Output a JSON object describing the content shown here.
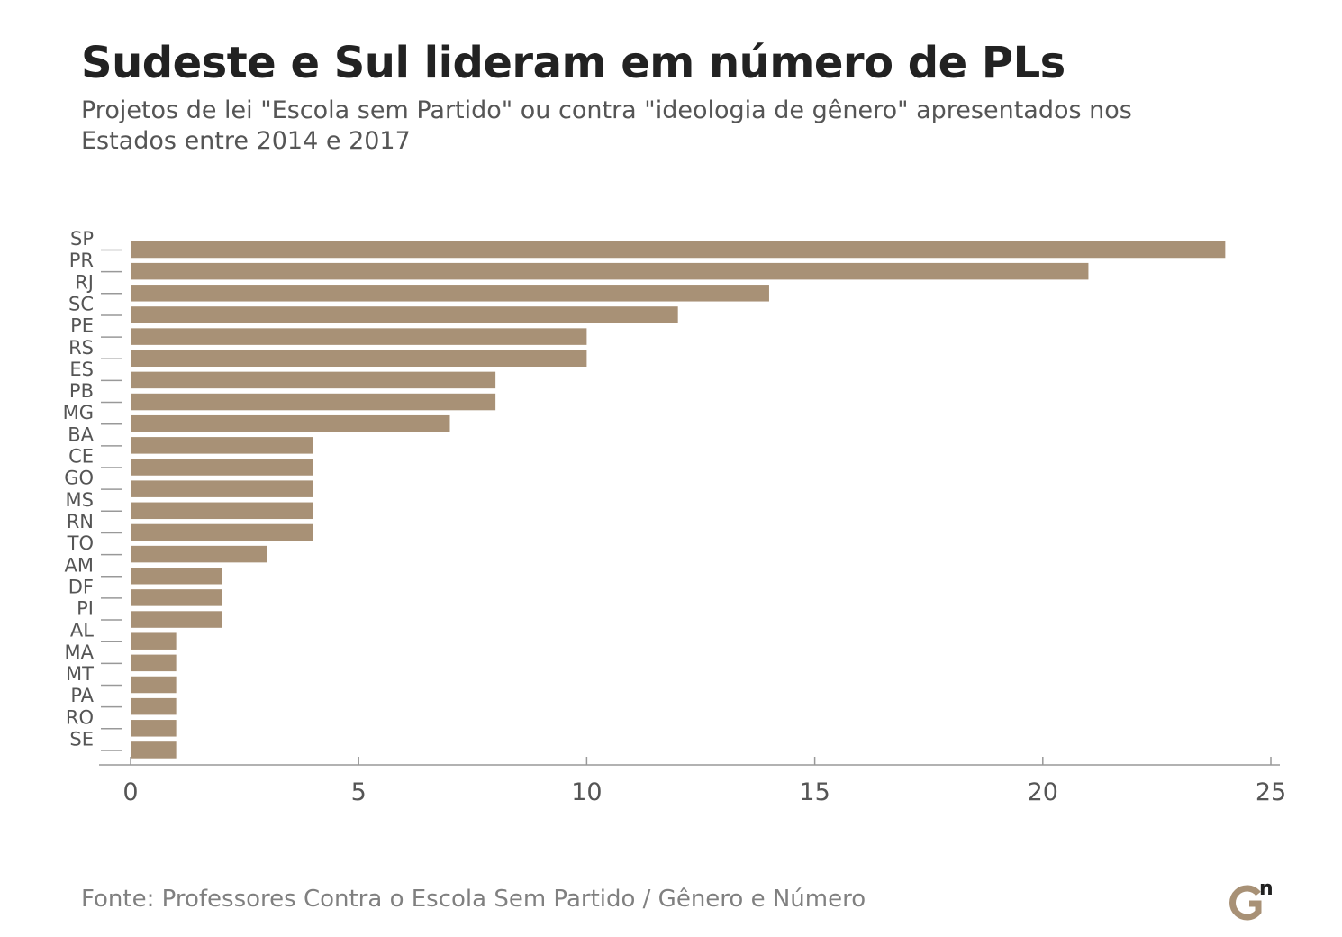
{
  "title": "Sudeste e Sul lideram em número de PLs",
  "subtitle": "Projetos de lei \"Escola sem Partido\" ou contra \"ideologia de gênero\" apresentados nos Estados entre 2014 e 2017",
  "source": "Fonte: Professores Contra o Escola Sem Partido / Gênero e Número",
  "colors": {
    "bar": "#A89176",
    "text": "#222222",
    "subtitle": "#555555",
    "axis": "#999999",
    "source": "#808080",
    "logo_n": "#222222"
  },
  "logo": {
    "letters": "Gn",
    "icon": "genero-e-numero-logo"
  },
  "chart_data": {
    "type": "bar",
    "orientation": "horizontal",
    "categories": [
      "SP",
      "PR",
      "RJ",
      "SC",
      "PE",
      "RS",
      "ES",
      "PB",
      "MG",
      "BA",
      "CE",
      "GO",
      "MS",
      "RN",
      "TO",
      "AM",
      "DF",
      "PI",
      "AL",
      "MA",
      "MT",
      "PA",
      "RO",
      "SE"
    ],
    "values": [
      24,
      21,
      14,
      12,
      10,
      10,
      8,
      8,
      7,
      4,
      4,
      4,
      4,
      4,
      3,
      2,
      2,
      2,
      1,
      1,
      1,
      1,
      1,
      1
    ],
    "xlim": [
      0,
      25
    ],
    "xticks": [
      0,
      5,
      10,
      15,
      20,
      25
    ],
    "grid": false,
    "legend": "none"
  }
}
